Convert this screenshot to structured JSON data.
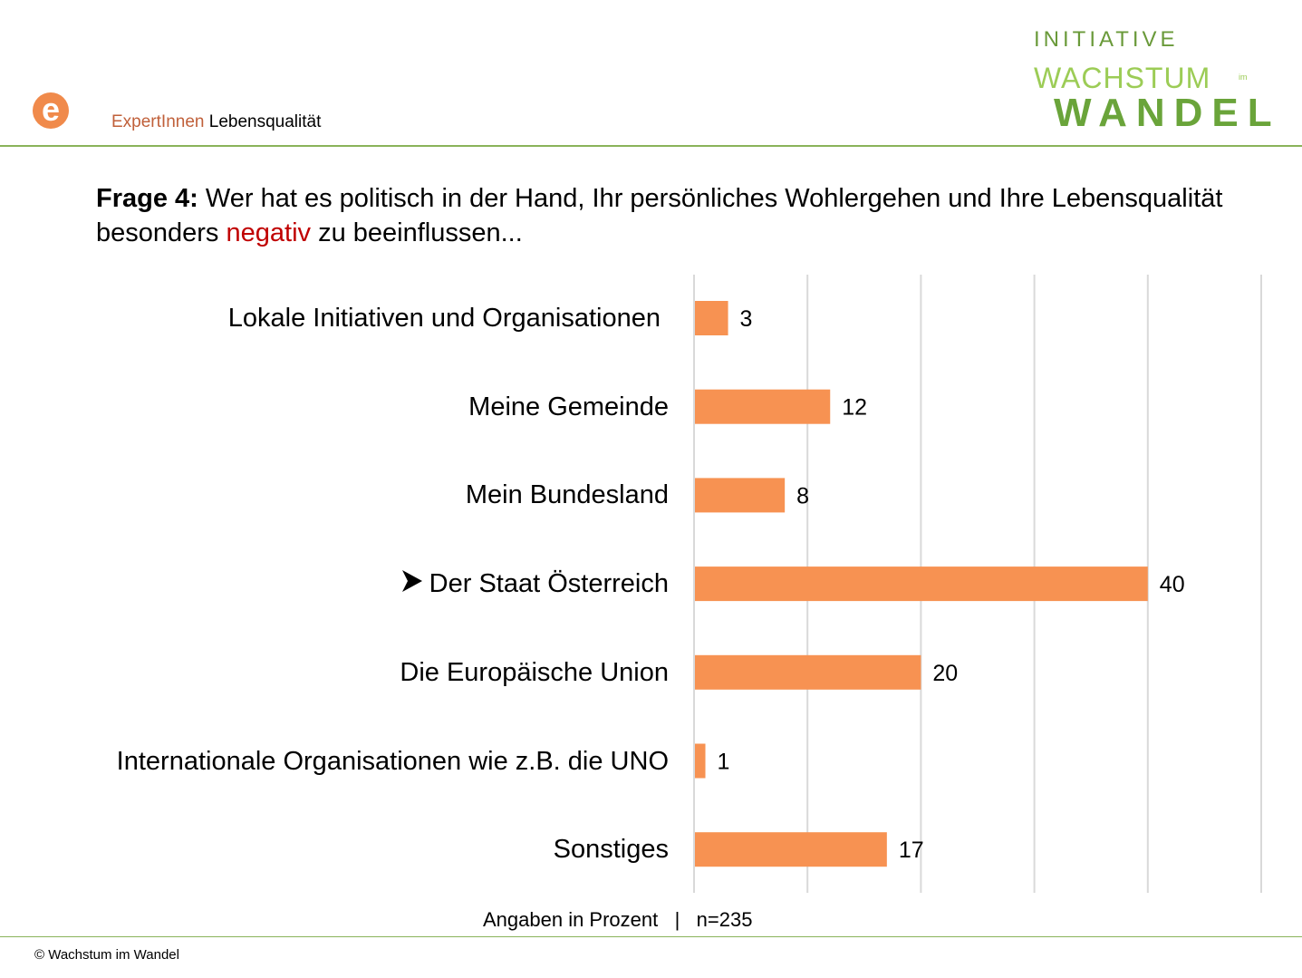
{
  "header": {
    "logo_letter": "e",
    "label_accent": "ExpertInnen",
    "label_rest": " Lebensqualität"
  },
  "brand": {
    "line1": "INITIATIVE",
    "line2": "WACHSTUM",
    "im": "im",
    "line3": "WANDEL"
  },
  "question": {
    "prefix": "Frage 4:",
    "text_before": " Wer hat es politisch in der Hand, Ihr persönliches Wohlergehen und Ihre Lebensqualität besonders ",
    "highlight": "negativ",
    "text_after": " zu beeinflussen..."
  },
  "colors": {
    "bar": "#f79252",
    "grid": "#d9d9d9",
    "rule": "#8ab35a",
    "negativ": "#c00000"
  },
  "chart_data": {
    "type": "bar",
    "orientation": "horizontal",
    "categories": [
      "Lokale Initiativen und Organisationen",
      "Meine Gemeinde",
      "Mein Bundesland",
      "Der Staat Österreich",
      "Die Europäische Union",
      "Internationale Organisationen wie z.B. die UNO",
      "Sonstiges"
    ],
    "values": [
      3,
      12,
      8,
      40,
      20,
      1,
      17
    ],
    "highlighted_category": "Der Staat Österreich",
    "highlight_icon": "arrowhead-right-icon",
    "xlim": [
      0,
      50
    ],
    "grid": true,
    "xlabel": "Angaben in Prozent",
    "n": "n=235"
  },
  "footer": {
    "note": "Angaben in Prozent   |   n=235",
    "copyright": "© Wachstum im Wandel"
  }
}
